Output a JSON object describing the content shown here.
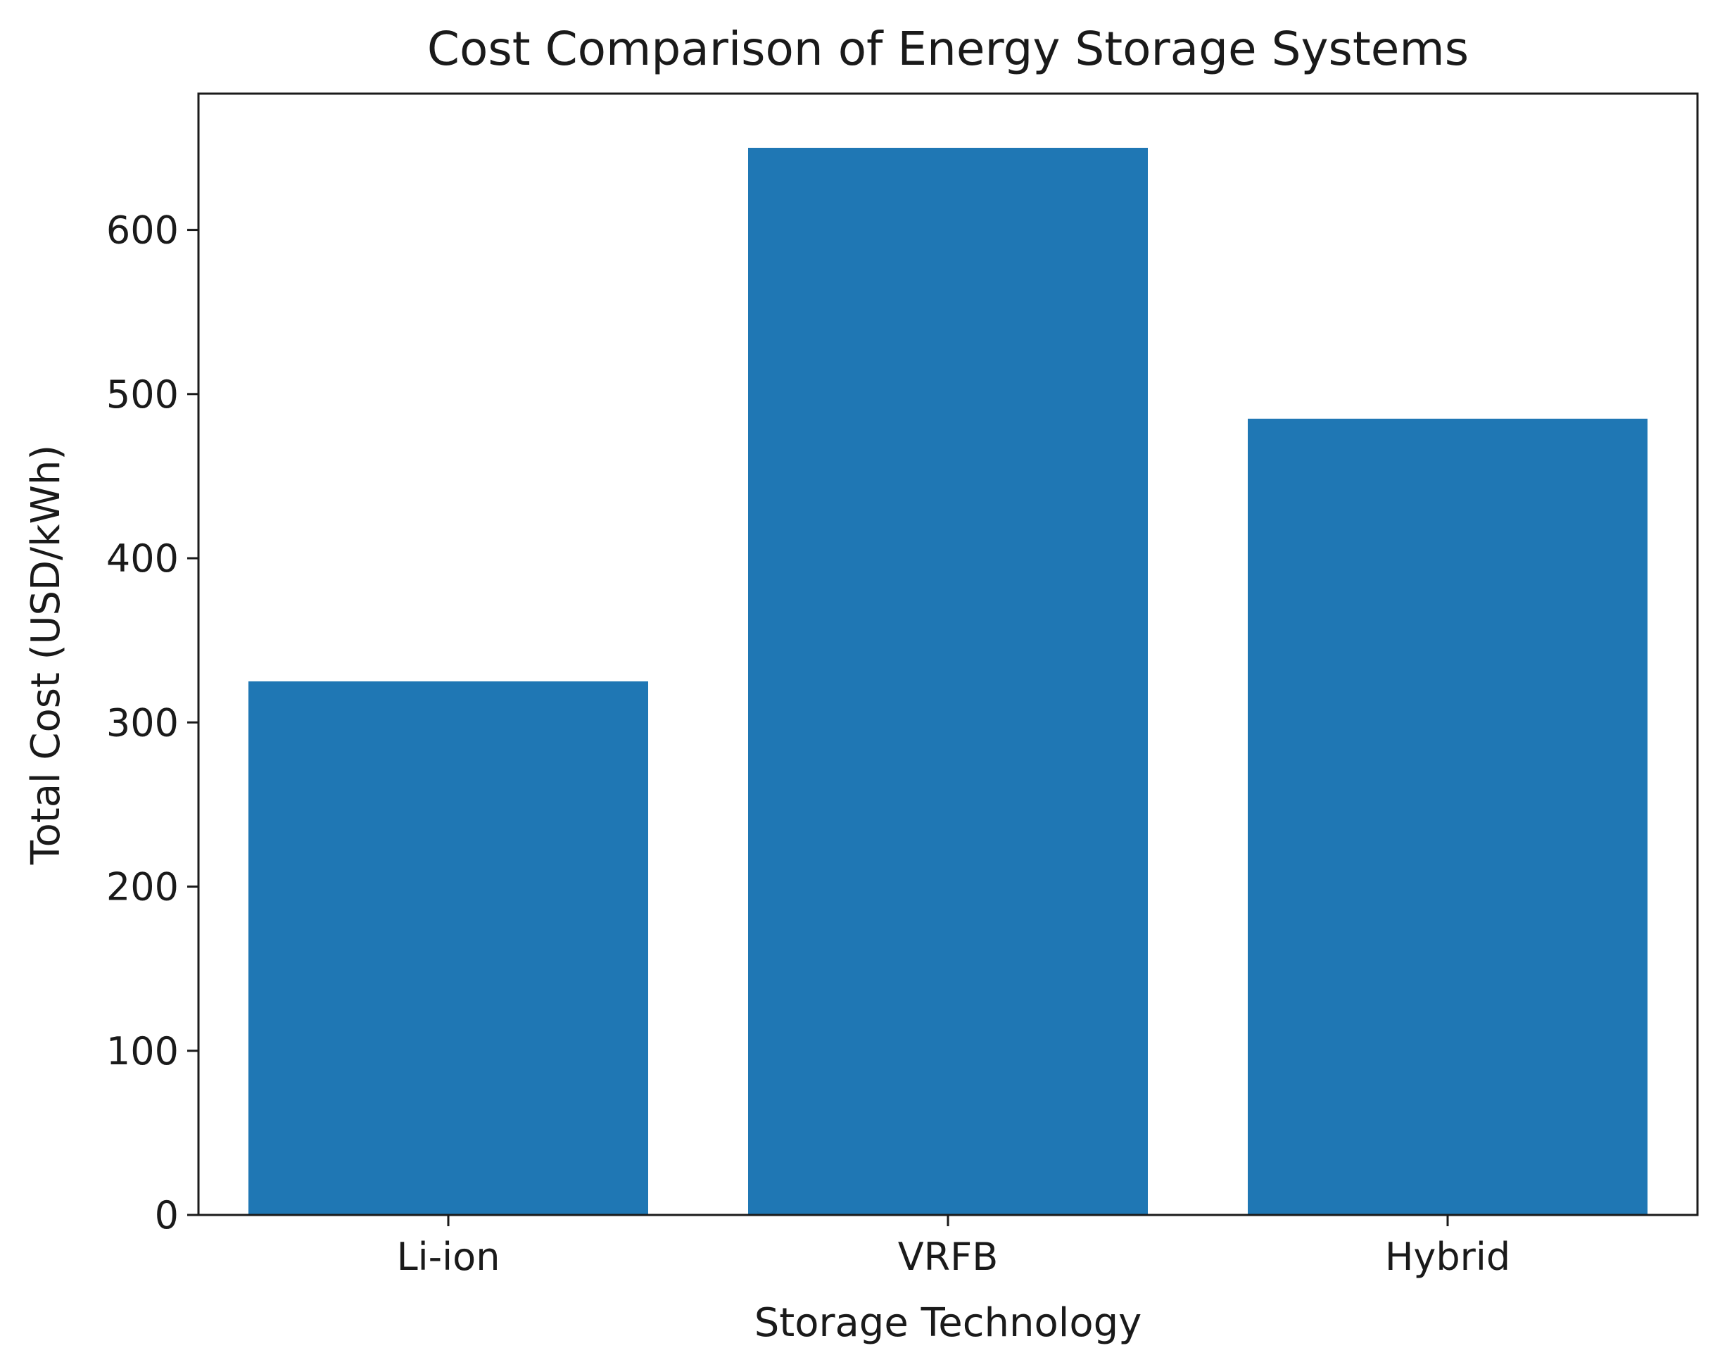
{
  "chart_data": {
    "type": "bar",
    "title": "Cost Comparison of Energy Storage Systems",
    "xlabel": "Storage Technology",
    "ylabel": "Total Cost (USD/kWh)",
    "categories": [
      "Li-ion",
      "VRFB",
      "Hybrid"
    ],
    "values": [
      325,
      650,
      485
    ],
    "ylim": [
      0,
      683
    ],
    "yticks": [
      0,
      100,
      200,
      300,
      400,
      500,
      600
    ],
    "grid": false,
    "bar_color": "#1f77b4"
  }
}
